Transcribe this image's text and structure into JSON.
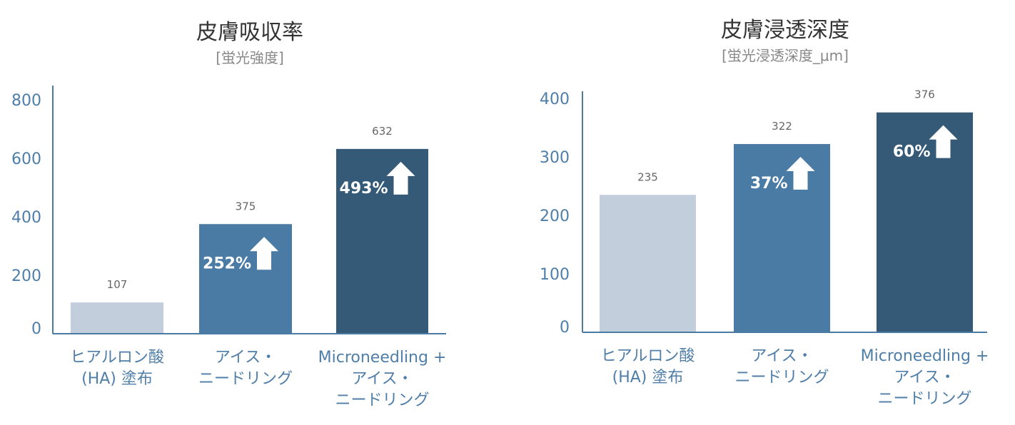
{
  "colors": {
    "base": "#c3cedd",
    "mid": "#4a7ba4",
    "dark": "#355a78",
    "axis": "#4a7ba4",
    "label": "#4f7ea8"
  },
  "chart_data": [
    {
      "type": "bar",
      "title": "皮膚吸収率",
      "subtitle": "[蛍光強度]",
      "ylim": [
        0,
        800
      ],
      "yticks": [
        0,
        200,
        400,
        600,
        800
      ],
      "grid": false,
      "categories": [
        [
          "ヒアルロン酸",
          "(HA) 塗布"
        ],
        [
          "アイス・",
          "ニードリング"
        ],
        [
          "Microneedling +",
          "アイス・",
          "ニードリング"
        ]
      ],
      "values": [
        107,
        375,
        632
      ],
      "value_labels": [
        "107",
        "375",
        "632"
      ],
      "increase_labels": [
        "",
        "252%",
        "493%"
      ]
    },
    {
      "type": "bar",
      "title": "皮膚浸透深度",
      "subtitle": "[蛍光浸透深度_μm]",
      "ylim": [
        0,
        400
      ],
      "yticks": [
        0,
        100,
        200,
        300,
        400
      ],
      "grid": false,
      "categories": [
        [
          "ヒアルロン酸",
          "(HA) 塗布"
        ],
        [
          "アイス・",
          "ニードリング"
        ],
        [
          "Microneedling +",
          "アイス・",
          "ニードリング"
        ]
      ],
      "values": [
        235,
        322,
        376
      ],
      "value_labels": [
        "235",
        "322",
        "376"
      ],
      "increase_labels": [
        "",
        "37%",
        "60%"
      ]
    }
  ]
}
